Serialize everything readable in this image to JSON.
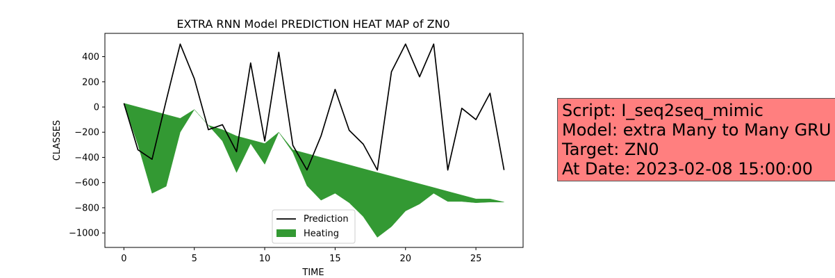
{
  "chart_data": {
    "type": "line",
    "title": "EXTRA RNN Model PREDICTION HEAT MAP of ZN0",
    "xlabel": "TIME",
    "ylabel": "CLASSES",
    "xlim": [
      -1.35,
      28.35
    ],
    "ylim": [
      -1115,
      585
    ],
    "xticks": [
      0,
      5,
      10,
      15,
      20,
      25
    ],
    "yticks": [
      400,
      200,
      0,
      -200,
      -400,
      -600,
      -800,
      -1000
    ],
    "x": [
      0,
      1,
      2,
      3,
      4,
      5,
      6,
      7,
      8,
      9,
      10,
      11,
      12,
      13,
      14,
      15,
      16,
      17,
      18,
      19,
      20,
      21,
      22,
      23,
      24,
      25,
      26,
      27
    ],
    "series": [
      {
        "name": "Prediction",
        "kind": "line",
        "color": "#000000",
        "values": [
          30,
          -340,
          -415,
          50,
          500,
          225,
          -180,
          -140,
          -355,
          350,
          -270,
          435,
          -305,
          -500,
          -230,
          140,
          -185,
          -295,
          -500,
          280,
          500,
          240,
          500,
          -500,
          -10,
          -100,
          110,
          -500
        ]
      },
      {
        "name": "Heating",
        "kind": "fill_between",
        "color": "#339933",
        "upper": [
          30,
          0,
          -30,
          -60,
          -90,
          -20,
          -145,
          -180,
          -230,
          -260,
          -290,
          -200,
          -340,
          -370,
          -400,
          -430,
          -460,
          -490,
          -520,
          -550,
          -580,
          -610,
          -640,
          -670,
          -700,
          -730,
          -730,
          -755
        ],
        "lower": [
          30,
          -300,
          -685,
          -630,
          -200,
          -20,
          -145,
          -270,
          -520,
          -290,
          -455,
          -200,
          -360,
          -625,
          -740,
          -685,
          -760,
          -870,
          -1035,
          -950,
          -825,
          -770,
          -685,
          -750,
          -750,
          -760,
          -755,
          -755
        ]
      }
    ],
    "legend": {
      "position": "bottom-center",
      "entries": [
        "Prediction",
        "Heating"
      ]
    },
    "grid": false
  },
  "info_box": {
    "background": "#ff7f7f",
    "lines": [
      "Script: I_seq2seq_mimic",
      "Model: extra Many to Many GRU",
      "Target: ZN0",
      "At Date: 2023-02-08 15:00:00"
    ]
  }
}
